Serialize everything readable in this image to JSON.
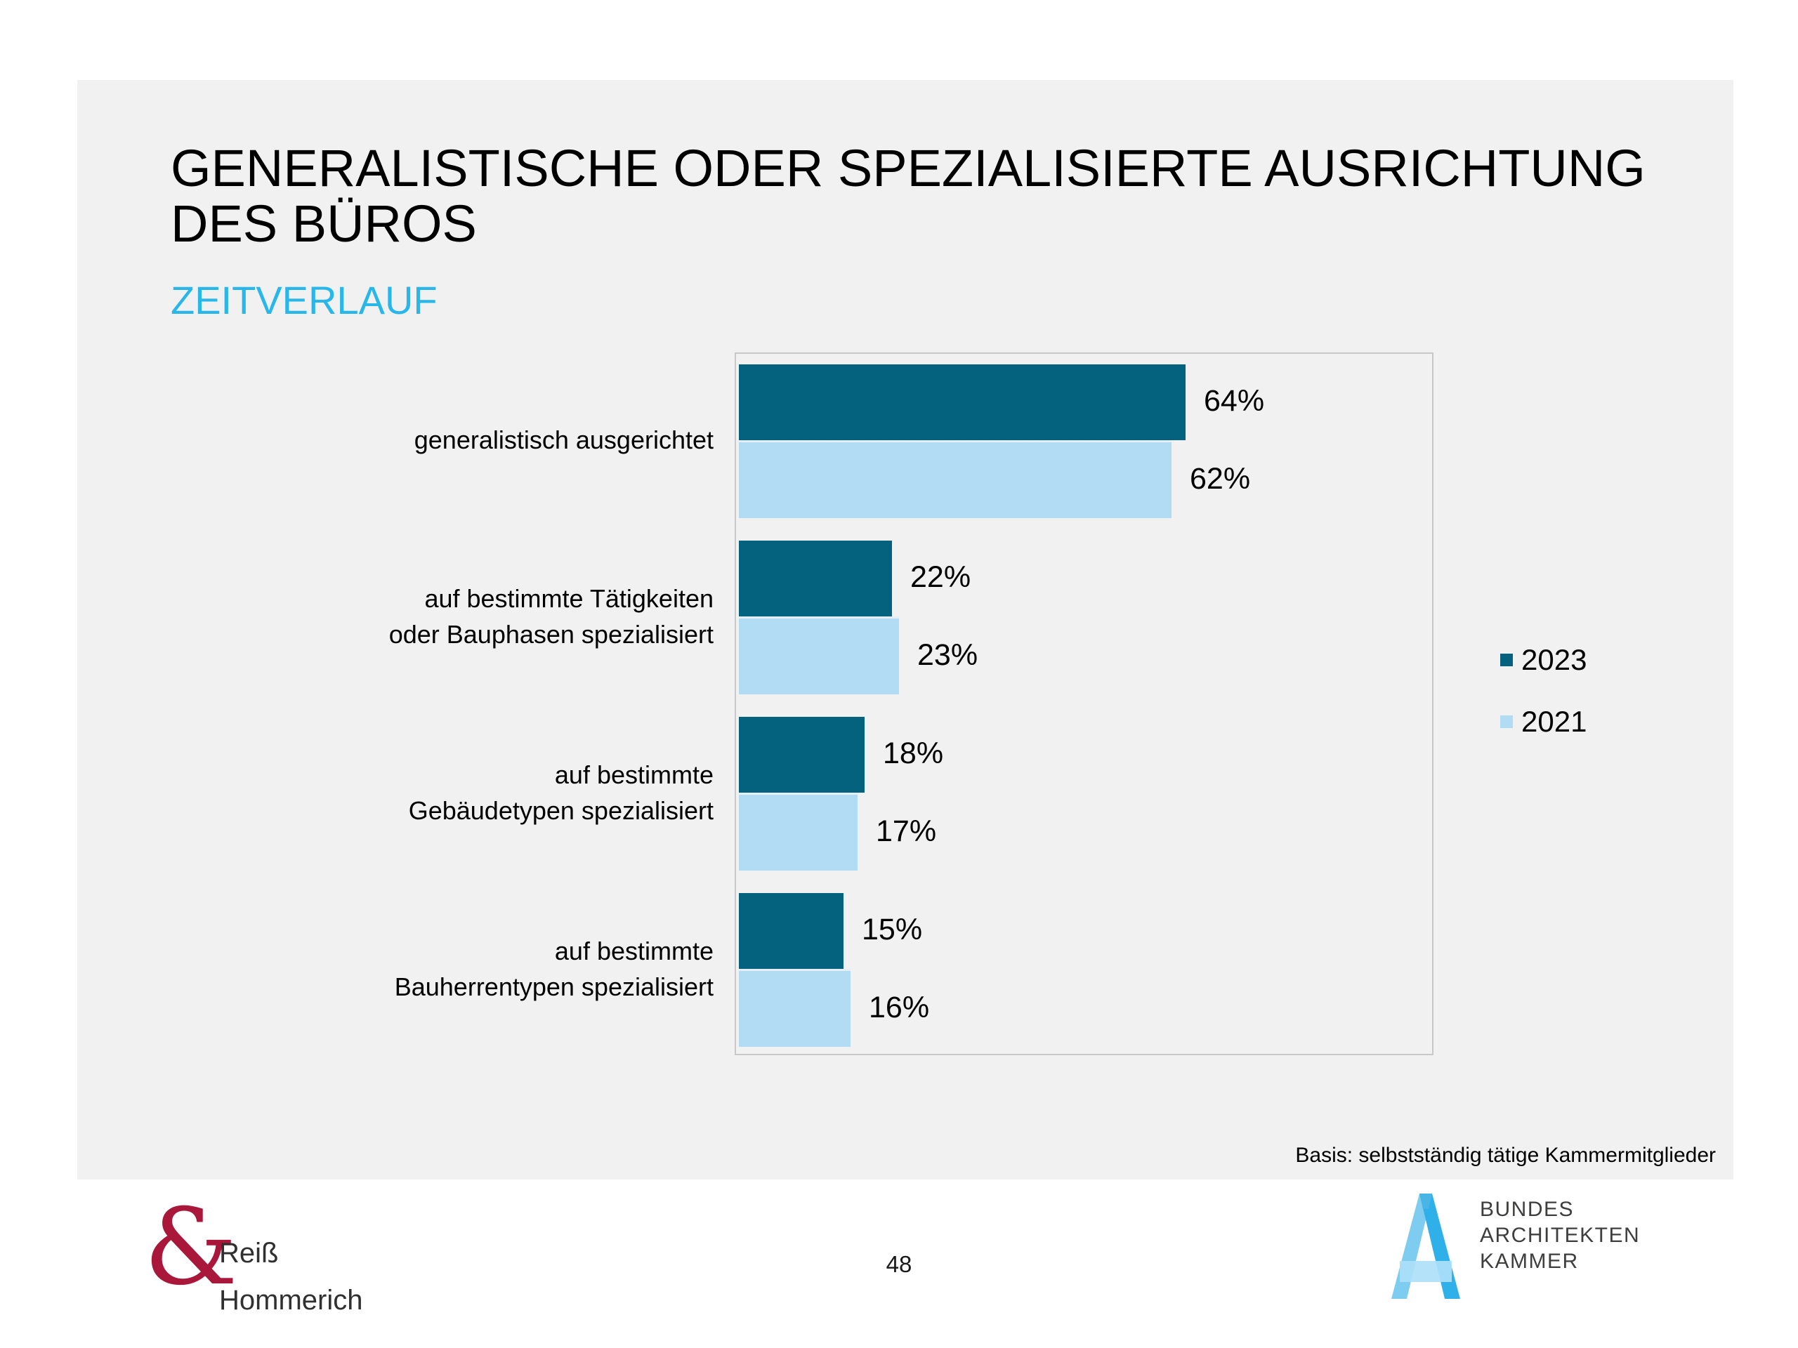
{
  "slide": {
    "title_line1": "GENERALISTISCHE ODER SPEZIALISIERTE AUSRICHTUNG",
    "title_line2": "DES BÜROS",
    "subtitle": "ZEITVERLAUF",
    "basis_note": "Basis: selbstständig tätige Kammermitglieder",
    "page_number": "48"
  },
  "chart_data": {
    "type": "bar",
    "orientation": "horizontal",
    "title": "",
    "xlabel": "",
    "ylabel": "",
    "xlim": [
      0,
      100
    ],
    "grid": false,
    "legend_position": "right",
    "value_suffix": "%",
    "categories": [
      "generalistisch ausgerichtet",
      "auf bestimmte Tätigkeiten oder Bauphasen spezialisiert",
      "auf bestimmte Gebäudetypen spezialisiert",
      "auf bestimmte Bauherrentypen spezialisiert"
    ],
    "category_label_lines": [
      [
        "generalistisch ausgerichtet"
      ],
      [
        "auf bestimmte Tätigkeiten",
        "oder Bauphasen spezialisiert"
      ],
      [
        "auf bestimmte",
        "Gebäudetypen spezialisiert"
      ],
      [
        "auf bestimmte",
        "Bauherrentypen spezialisiert"
      ]
    ],
    "series": [
      {
        "name": "2023",
        "color": "#04627f",
        "values": [
          64,
          22,
          18,
          15
        ]
      },
      {
        "name": "2021",
        "color": "#b2dcf4",
        "values": [
          62,
          23,
          17,
          16
        ]
      }
    ]
  },
  "colors": {
    "slide_background": "#f1f1f2",
    "subtitle_accent": "#29b7ea",
    "plot_border": "#c8c8c8",
    "ampersand_red": "#a9183a",
    "bak_blue_light": "#7fccf1",
    "bak_blue_dark": "#2fb0e8",
    "bak_blue_pale": "#ade0f8"
  },
  "footer": {
    "left_logo": {
      "ampersand": "&",
      "line1": "Reiß",
      "line2": "Hommerich"
    },
    "right_logo": {
      "lines": [
        "BUNDES",
        "ARCHITEKTEN",
        "KAMMER"
      ]
    }
  }
}
